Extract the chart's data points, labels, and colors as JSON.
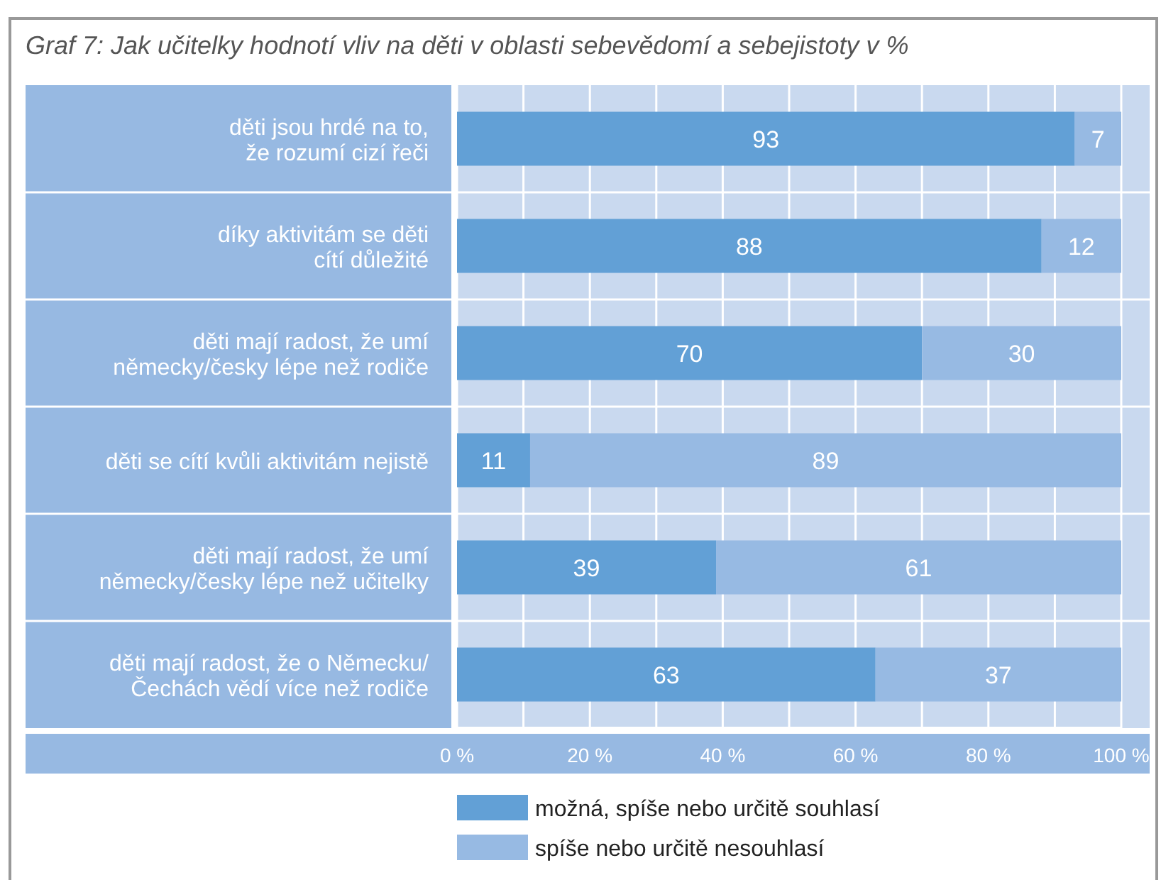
{
  "chart_data": {
    "type": "bar",
    "orientation": "horizontal",
    "stacked": true,
    "title": "Graf 7: Jak učitelky hodnotí vliv na děti v oblasti sebevědomí a sebejistoty v  %",
    "categories": [
      "děti jsou hrdé na to,\nže rozumí cizí řeči",
      "díky aktivitám se děti\ncítí důležité",
      "děti mají radost, že umí\nněmecky/česky lépe než rodiče",
      "děti se cítí kvůli aktivitám nejistě",
      "děti mají radost, že umí\nněmecky/česky lépe než učitelky",
      "děti mají radost, že o Německu/\nČechách vědí více než rodiče"
    ],
    "series": [
      {
        "name": "možná, spíše nebo určitě souhlasí",
        "color": "#62a0d6",
        "values": [
          93,
          88,
          70,
          11,
          39,
          63
        ]
      },
      {
        "name": "spíše nebo určitě nesouhlasí",
        "color": "#97bae3",
        "values": [
          7,
          12,
          30,
          89,
          61,
          37
        ]
      }
    ],
    "data_labels": true,
    "xlim": [
      0,
      100
    ],
    "xticks": [
      {
        "value": 0,
        "label": "0 %"
      },
      {
        "value": 10,
        "label": null
      },
      {
        "value": 20,
        "label": "20 %"
      },
      {
        "value": 30,
        "label": null
      },
      {
        "value": 40,
        "label": "40 %"
      },
      {
        "value": 50,
        "label": null
      },
      {
        "value": 60,
        "label": "60 %"
      },
      {
        "value": 70,
        "label": null
      },
      {
        "value": 80,
        "label": "80 %"
      },
      {
        "value": 90,
        "label": null
      },
      {
        "value": 100,
        "label": "100 %"
      }
    ],
    "grid": "x",
    "legend": "bottom"
  }
}
